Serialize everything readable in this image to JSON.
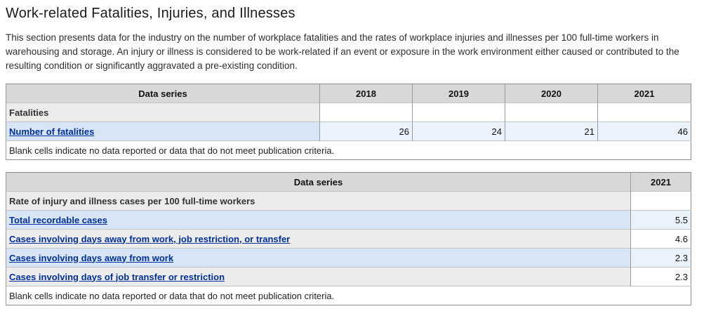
{
  "page": {
    "title": "Work-related Fatalities, Injuries, and Illnesses",
    "intro": "This section presents data for the industry on the number of workplace fatalities and the rates of workplace injuries and illnesses per 100 full-time workers in warehousing and storage. An injury or illness is considered to be work-related if an event or exposure in the work environment either caused or contributed to the resulting condition or significantly aggravated a pre-existing condition."
  },
  "colors": {
    "link": "#002f9f",
    "table_header_bg": "#d8d8d8",
    "row_gray_label_bg": "#ececec",
    "row_blue_label_bg": "#d7e5f6",
    "row_blue_value_bg": "#eaf2fb"
  },
  "fatalities_table": {
    "header": [
      "Data series",
      "2018",
      "2019",
      "2020",
      "2021"
    ],
    "rows": [
      {
        "label": "Fatalities",
        "type": "section",
        "indent": 0,
        "values": [
          "",
          "",
          "",
          ""
        ]
      },
      {
        "label": "Number of fatalities",
        "type": "link",
        "indent": 0,
        "values": [
          "26",
          "24",
          "21",
          "46"
        ]
      }
    ],
    "footnote": "Blank cells indicate no data reported or data that do not meet publication criteria."
  },
  "rates_table": {
    "header": [
      "Data series",
      "2021"
    ],
    "rows": [
      {
        "label": "Rate of injury and illness cases per 100 full-time workers",
        "type": "section",
        "indent": 0,
        "values": [
          ""
        ]
      },
      {
        "label": "Total recordable cases",
        "type": "link",
        "indent": 0,
        "values": [
          "5.5"
        ]
      },
      {
        "label": "Cases involving days away from work, job restriction, or transfer",
        "type": "link",
        "indent": 1,
        "values": [
          "4.6"
        ]
      },
      {
        "label": "Cases involving days away from work",
        "type": "link",
        "indent": 2,
        "values": [
          "2.3"
        ]
      },
      {
        "label": "Cases involving days of job transfer or restriction",
        "type": "link",
        "indent": 2,
        "values": [
          "2.3"
        ]
      }
    ],
    "footnote": "Blank cells indicate no data reported or data that do not meet publication criteria."
  }
}
